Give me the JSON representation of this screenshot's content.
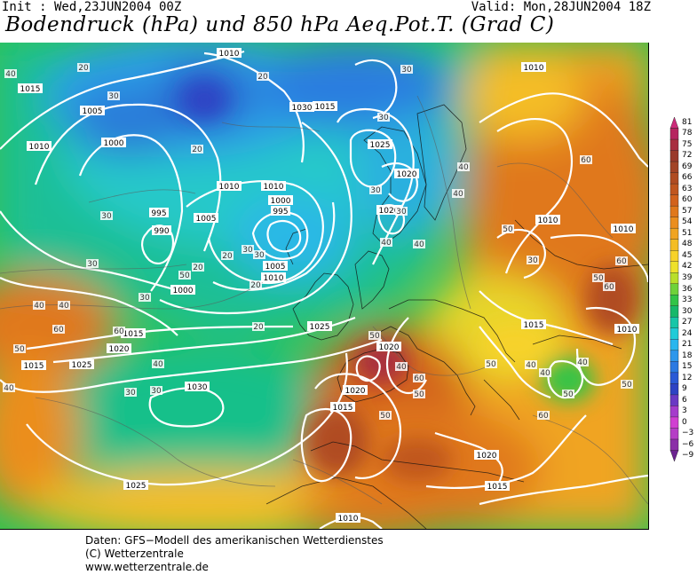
{
  "header": {
    "init_text": "Init : Wed,23JUN2004 00Z",
    "valid_text": "Valid: Mon,28JUN2004 18Z",
    "title": "Bodendruck (hPa) und 850 hPa Aeq.Pot.T. (Grad C)"
  },
  "colorbar": {
    "ticks": [
      "81",
      "78",
      "75",
      "72",
      "69",
      "66",
      "63",
      "60",
      "57",
      "54",
      "51",
      "48",
      "45",
      "42",
      "39",
      "36",
      "33",
      "30",
      "27",
      "24",
      "21",
      "18",
      "15",
      "12",
      "9",
      "6",
      "3",
      "0",
      "−3",
      "−6",
      "−9"
    ],
    "colors": [
      "#cc2a7a",
      "#b6245f",
      "#a82f40",
      "#9a3a2a",
      "#a24426",
      "#b04c22",
      "#c0561f",
      "#d2621d",
      "#e0781c",
      "#eb8e1e",
      "#f0a421",
      "#f4bd25",
      "#f7d22a",
      "#eee12a",
      "#b9df2a",
      "#6fd23a",
      "#32c447",
      "#17b86a",
      "#17c6a8",
      "#20cbd8",
      "#29b6ee",
      "#2d97ec",
      "#2b79e2",
      "#2a5ad6",
      "#2d43c4",
      "#6a39c4",
      "#a53ccc",
      "#d13fd2",
      "#b53ec6",
      "#8b2fa8",
      "#6b2390"
    ]
  },
  "map": {
    "pressure_labels": [
      {
        "text": "1010"
      },
      {
        "text": "1015"
      },
      {
        "text": "1005"
      },
      {
        "text": "1010"
      },
      {
        "text": "1000"
      },
      {
        "text": "995"
      },
      {
        "text": "990"
      },
      {
        "text": "1005"
      },
      {
        "text": "1010"
      },
      {
        "text": "1010"
      },
      {
        "text": "1000"
      },
      {
        "text": "995"
      },
      {
        "text": "1005"
      },
      {
        "text": "1010"
      },
      {
        "text": "1015"
      },
      {
        "text": "1020"
      },
      {
        "text": "1015"
      },
      {
        "text": "1030"
      },
      {
        "text": "1025"
      },
      {
        "text": "1020"
      },
      {
        "text": "1025"
      },
      {
        "text": "1000"
      },
      {
        "text": "1015"
      },
      {
        "text": "1020"
      },
      {
        "text": "1025"
      },
      {
        "text": "1030"
      },
      {
        "text": "1025"
      },
      {
        "text": "1020"
      },
      {
        "text": "1020"
      },
      {
        "text": "1015"
      },
      {
        "text": "1020"
      },
      {
        "text": "1015"
      },
      {
        "text": "1010"
      },
      {
        "text": "1010"
      },
      {
        "text": "1010"
      },
      {
        "text": "1015"
      },
      {
        "text": "1010"
      },
      {
        "text": "1010"
      }
    ],
    "theta_labels": [
      {
        "text": "40"
      },
      {
        "text": "20"
      },
      {
        "text": "30"
      },
      {
        "text": "20"
      },
      {
        "text": "20"
      },
      {
        "text": "30"
      },
      {
        "text": "30"
      },
      {
        "text": "20"
      },
      {
        "text": "30"
      },
      {
        "text": "30"
      },
      {
        "text": "20"
      },
      {
        "text": "20"
      },
      {
        "text": "30"
      },
      {
        "text": "20"
      },
      {
        "text": "30"
      },
      {
        "text": "30"
      },
      {
        "text": "30"
      },
      {
        "text": "40"
      },
      {
        "text": "30"
      },
      {
        "text": "40"
      },
      {
        "text": "40"
      },
      {
        "text": "40"
      },
      {
        "text": "50"
      },
      {
        "text": "40"
      },
      {
        "text": "40"
      },
      {
        "text": "60"
      },
      {
        "text": "50"
      },
      {
        "text": "40"
      },
      {
        "text": "60"
      },
      {
        "text": "60"
      },
      {
        "text": "50"
      },
      {
        "text": "30"
      },
      {
        "text": "40"
      },
      {
        "text": "50"
      },
      {
        "text": "60"
      },
      {
        "text": "50"
      },
      {
        "text": "60"
      },
      {
        "text": "60"
      },
      {
        "text": "50"
      },
      {
        "text": "40"
      },
      {
        "text": "50"
      },
      {
        "text": "60"
      },
      {
        "text": "40"
      },
      {
        "text": "40"
      },
      {
        "text": "50"
      },
      {
        "text": "50"
      },
      {
        "text": "30"
      },
      {
        "text": "40"
      },
      {
        "text": "30"
      },
      {
        "text": "50"
      }
    ]
  },
  "credits": {
    "line1": "Daten: GFS−Modell des amerikanischen Wetterdienstes",
    "line2": "(C) Wetterzentrale",
    "line3": "www.wetterzentrale.de"
  }
}
